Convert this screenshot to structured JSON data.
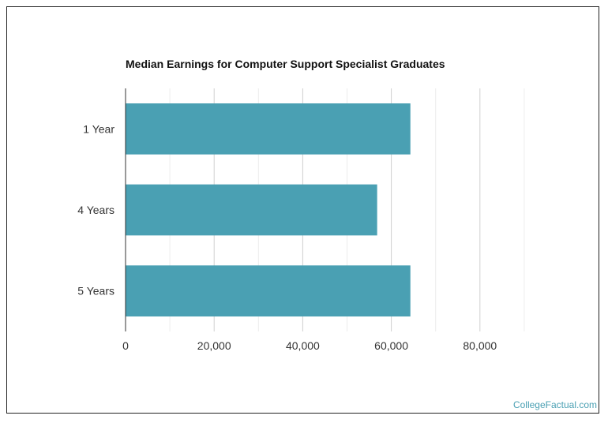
{
  "chart_data": {
    "type": "bar",
    "orientation": "horizontal",
    "title": "Median Earnings for Computer Support Specialist Graduates",
    "categories": [
      "1 Year",
      "4 Years",
      "5 Years"
    ],
    "values": [
      64300,
      56800,
      64300
    ],
    "xlim": [
      0,
      100000
    ],
    "x_ticks": [
      0,
      20000,
      40000,
      60000,
      80000
    ],
    "x_tick_labels": [
      "0",
      "20,000",
      "40,000",
      "60,000",
      "80,000"
    ],
    "xlabel": "",
    "ylabel": "",
    "grid": true,
    "legend": "none",
    "bar_color": "#4aa0b3"
  },
  "footer": {
    "watermark": "CollegeFactual.com"
  }
}
